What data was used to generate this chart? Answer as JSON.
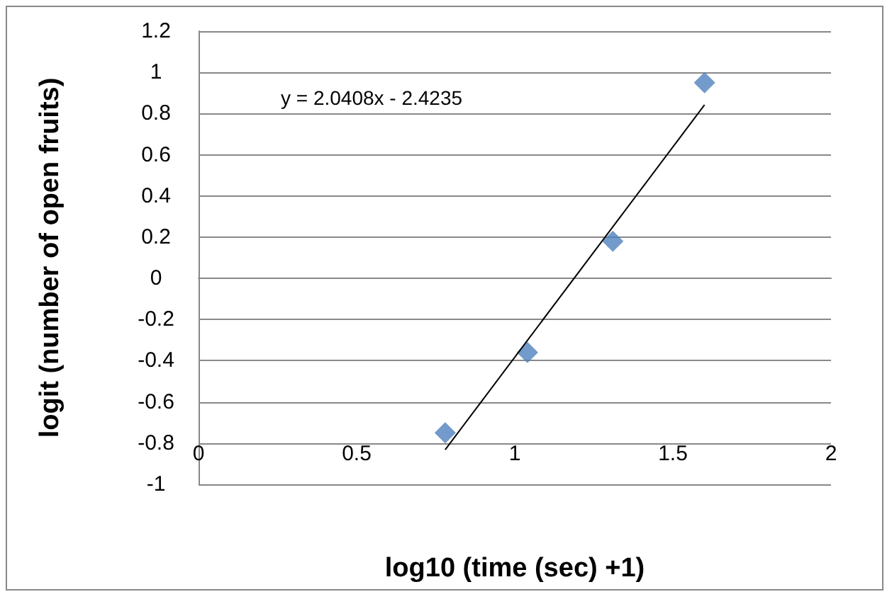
{
  "chart_data": {
    "type": "scatter",
    "xlabel": "log10 (time (sec) +1)",
    "ylabel": "logit (number of open fruits)",
    "annotations": [
      "y = 2.0408x - 2.4235"
    ],
    "series": [
      {
        "type": "scatter",
        "color": "#4f81bd",
        "marker": "diamond",
        "x": [
          0.78,
          1.04,
          1.31,
          1.6
        ],
        "values": [
          -0.75,
          -0.36,
          0.18,
          0.95
        ]
      },
      {
        "type": "line",
        "color": "#000000",
        "marker": "none",
        "x": [
          0.78,
          1.6
        ],
        "values": [
          -0.832,
          0.842
        ]
      }
    ],
    "xlim": [
      0,
      2
    ],
    "xticks": [
      0,
      0.5,
      1,
      1.5,
      2
    ],
    "ylim": [
      -1,
      1.2
    ],
    "yticks": [
      -1,
      -0.8,
      -0.6,
      -0.4,
      -0.2,
      0,
      0.2,
      0.4,
      0.6,
      0.8,
      1,
      1.2
    ],
    "grid": "y"
  }
}
